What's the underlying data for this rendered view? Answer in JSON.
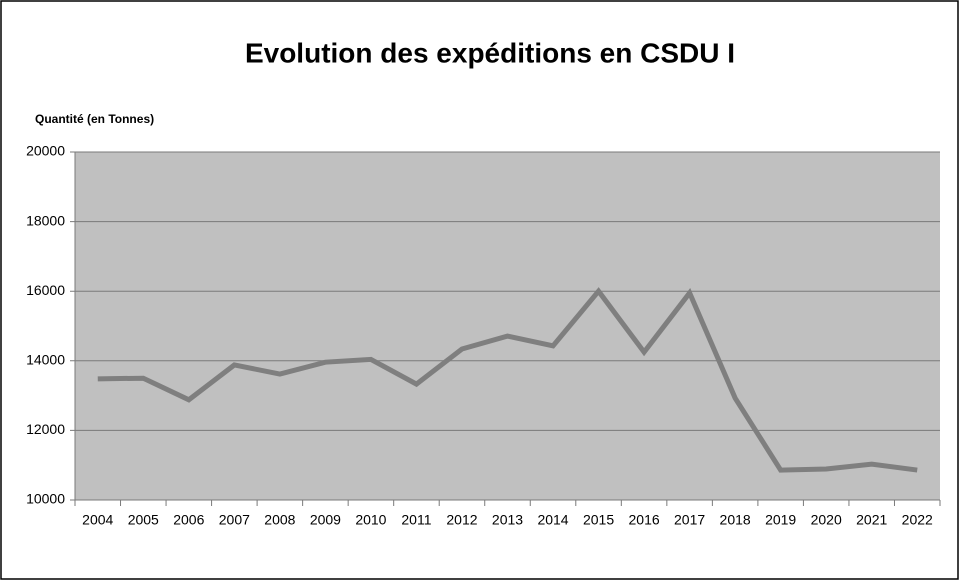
{
  "chart_data": {
    "type": "line",
    "title": "Evolution des expéditions en CSDU I",
    "y_label": "Quantité (en Tonnes)",
    "categories": [
      "2004",
      "2005",
      "2006",
      "2007",
      "2008",
      "2009",
      "2010",
      "2011",
      "2012",
      "2013",
      "2014",
      "2015",
      "2016",
      "2017",
      "2018",
      "2019",
      "2020",
      "2021",
      "2022"
    ],
    "series": [
      {
        "name": "Quantité",
        "color": "#7f7f7f",
        "values": [
          13480,
          13500,
          12880,
          13880,
          13620,
          13960,
          14040,
          13330,
          14340,
          14710,
          14430,
          16000,
          14250,
          15950,
          12930,
          10860,
          10890,
          11030,
          10860
        ]
      }
    ],
    "ylim": [
      10000,
      20000
    ],
    "yticks": [
      10000,
      12000,
      14000,
      16000,
      18000,
      20000
    ],
    "grid": true
  }
}
